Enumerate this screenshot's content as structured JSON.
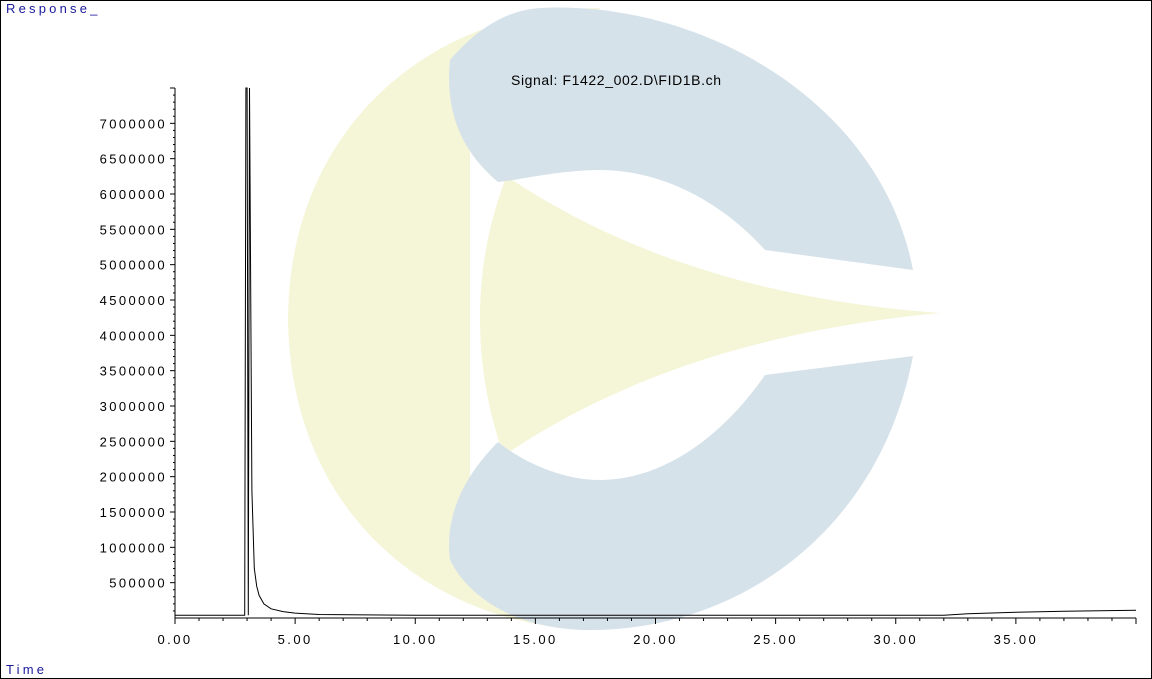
{
  "chart_data": {
    "type": "line",
    "title": "Signal: F1422_002.D\\FID1B.ch",
    "ylabel": "Response_",
    "xlabel": "Time",
    "xlim": [
      0,
      40
    ],
    "ylim": [
      0,
      7500000
    ],
    "x_ticks": [
      "0.00",
      "5.00",
      "10.00",
      "15.00",
      "20.00",
      "25.00",
      "30.00",
      "35.00"
    ],
    "y_ticks": [
      "500000",
      "1000000",
      "1500000",
      "2000000",
      "2500000",
      "3000000",
      "3500000",
      "4000000",
      "4500000",
      "5000000",
      "5500000",
      "6000000",
      "6500000",
      "7000000"
    ],
    "series": [
      {
        "x": [
          0.0,
          2.9,
          2.95,
          3.0,
          3.05,
          3.1,
          3.2,
          3.3,
          3.4,
          3.5,
          3.7,
          4.0,
          4.5,
          5.0,
          6.0,
          10.0,
          20.0,
          30.0,
          32.0,
          33.0,
          35.0,
          37.0,
          40.0
        ],
        "y": [
          40000,
          40000,
          7500000,
          7500000,
          40000,
          7500000,
          1800000,
          700000,
          450000,
          320000,
          200000,
          130000,
          90000,
          70000,
          50000,
          40000,
          40000,
          40000,
          40000,
          60000,
          80000,
          95000,
          110000
        ]
      }
    ]
  },
  "watermark": {
    "yellow": "#f5f5d8",
    "blue": "#d6e2ea"
  }
}
